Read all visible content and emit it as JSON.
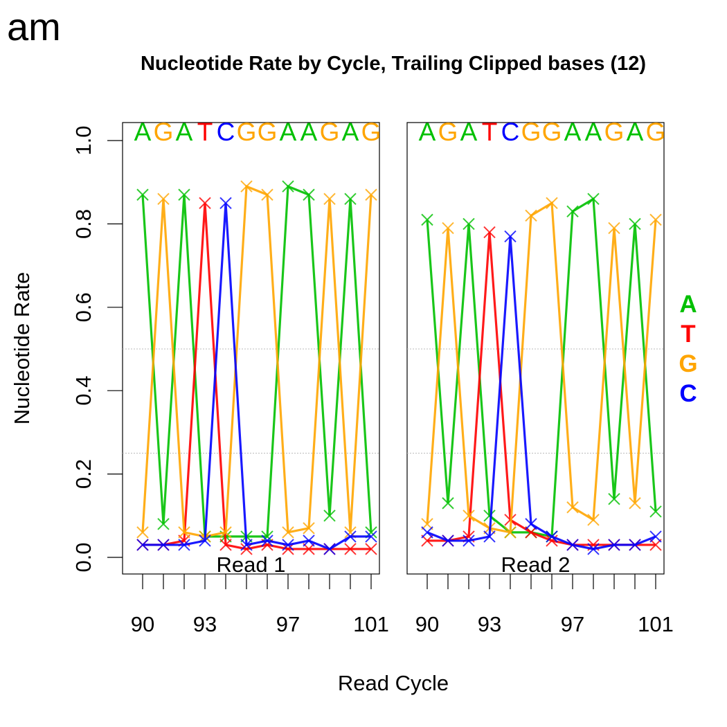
{
  "corner_label": "am",
  "legend": [
    {
      "label": "A",
      "color": "#00c000"
    },
    {
      "label": "T",
      "color": "#ff0000"
    },
    {
      "label": "G",
      "color": "#ffa500"
    },
    {
      "label": "C",
      "color": "#0000ff"
    }
  ],
  "chart_data": {
    "type": "line",
    "title": "Nucleotide Rate by Cycle, Trailing Clipped bases (12)",
    "xlabel": "Read Cycle",
    "ylabel": "Nucleotide Rate",
    "ylim": [
      0,
      1.0
    ],
    "yticks": [
      "0.0",
      "0.2",
      "0.4",
      "0.6",
      "0.8",
      "1.0"
    ],
    "reference_lines": [
      0.25,
      0.5
    ],
    "grid": false,
    "legend_position": "right",
    "sequence": [
      "A",
      "G",
      "A",
      "T",
      "C",
      "G",
      "G",
      "A",
      "A",
      "G",
      "A",
      "G"
    ],
    "x": [
      90,
      91,
      92,
      93,
      94,
      95,
      96,
      97,
      98,
      99,
      100,
      101
    ],
    "xtick_labels": [
      "90",
      "93",
      "97",
      "101"
    ],
    "xtick_label_positions": [
      90,
      93,
      97,
      101
    ],
    "base_colors": {
      "A": "#00c000",
      "T": "#ff0000",
      "G": "#ffa500",
      "C": "#0000ff"
    },
    "panels": [
      {
        "label": "Read 1",
        "series": [
          {
            "name": "A",
            "values": [
              0.87,
              0.08,
              0.87,
              0.05,
              0.05,
              0.05,
              0.05,
              0.89,
              0.87,
              0.1,
              0.86,
              0.06
            ]
          },
          {
            "name": "T",
            "values": [
              0.03,
              0.03,
              0.04,
              0.85,
              0.03,
              0.02,
              0.03,
              0.02,
              0.02,
              0.02,
              0.02,
              0.02
            ]
          },
          {
            "name": "G",
            "values": [
              0.06,
              0.86,
              0.06,
              0.05,
              0.06,
              0.89,
              0.87,
              0.06,
              0.07,
              0.86,
              0.06,
              0.87
            ]
          },
          {
            "name": "C",
            "values": [
              0.03,
              0.03,
              0.03,
              0.04,
              0.85,
              0.03,
              0.04,
              0.03,
              0.04,
              0.02,
              0.05,
              0.05
            ]
          }
        ]
      },
      {
        "label": "Read 2",
        "series": [
          {
            "name": "A",
            "values": [
              0.81,
              0.13,
              0.8,
              0.1,
              0.06,
              0.06,
              0.05,
              0.83,
              0.86,
              0.14,
              0.8,
              0.11
            ]
          },
          {
            "name": "T",
            "values": [
              0.04,
              0.04,
              0.05,
              0.78,
              0.09,
              0.06,
              0.04,
              0.03,
              0.03,
              0.03,
              0.03,
              0.03
            ]
          },
          {
            "name": "G",
            "values": [
              0.08,
              0.79,
              0.1,
              0.07,
              0.06,
              0.82,
              0.85,
              0.12,
              0.09,
              0.79,
              0.13,
              0.81
            ]
          },
          {
            "name": "C",
            "values": [
              0.06,
              0.04,
              0.04,
              0.05,
              0.77,
              0.08,
              0.05,
              0.03,
              0.02,
              0.03,
              0.03,
              0.05
            ]
          }
        ]
      }
    ]
  }
}
